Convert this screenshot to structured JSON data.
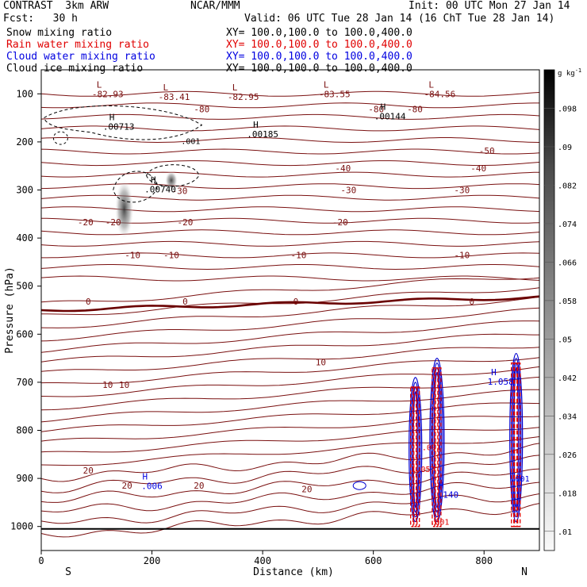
{
  "header": {
    "model": "CONTRAST  3km ARW",
    "org": "NCAR/MMM",
    "init": "Init: 00 UTC Mon 27 Jan 14",
    "fcst": "Fcst:   30 h",
    "valid": "Valid: 06 UTC Tue 28 Jan 14 (16 ChT Tue 28 Jan 14)",
    "fields": [
      {
        "name": "Snow mixing ratio",
        "xy": "XY= 100.0,100.0 to 100.0,400.0",
        "color": "#000000"
      },
      {
        "name": "Rain water mixing ratio",
        "xy": "XY= 100.0,100.0 to 100.0,400.0",
        "color": "#e00000"
      },
      {
        "name": "Cloud water mixing ratio",
        "xy": "XY= 100.0,100.0 to 100.0,400.0",
        "color": "#0000e0"
      },
      {
        "name": "Cloud ice mixing ratio",
        "xy": "XY= 100.0,100.0 to 100.0,400.0",
        "color": "#000000"
      }
    ]
  },
  "chart_data": {
    "type": "cross-section contour plot",
    "xlabel": "Distance (km)",
    "ylabel": "Pressure (hPa)",
    "xlim": [
      0,
      900
    ],
    "ylim": [
      1050,
      50
    ],
    "x_ticks": [
      "0",
      "200",
      "400",
      "600",
      "800"
    ],
    "y_ticks": [
      "100",
      "200",
      "300",
      "400",
      "500",
      "600",
      "700",
      "800",
      "900",
      "1000"
    ],
    "endpoints": {
      "left": "S",
      "right": "N"
    },
    "colorbar": {
      "unit": "g kg",
      "unit_exp": "-1",
      "labels": [
        ".098",
        ".09",
        ".082",
        ".074",
        ".066",
        ".058",
        ".05",
        ".042",
        ".034",
        ".026",
        ".018",
        ".01"
      ]
    },
    "temperature_contour_labels": [
      {
        "x": 80,
        "p": 367,
        "t": "-20"
      },
      {
        "x": 130,
        "p": 367,
        "t": "-20"
      },
      {
        "x": 260,
        "p": 367,
        "t": "-20"
      },
      {
        "x": 540,
        "p": 367,
        "t": "-20"
      },
      {
        "x": 165,
        "p": 435,
        "t": "-10"
      },
      {
        "x": 235,
        "p": 435,
        "t": "-10"
      },
      {
        "x": 465,
        "p": 435,
        "t": "-10"
      },
      {
        "x": 760,
        "p": 435,
        "t": "-10"
      },
      {
        "x": 85,
        "p": 532,
        "t": "0"
      },
      {
        "x": 260,
        "p": 532,
        "t": "0"
      },
      {
        "x": 460,
        "p": 532,
        "t": "0"
      },
      {
        "x": 778,
        "p": 532,
        "t": "0"
      },
      {
        "x": 505,
        "p": 658,
        "t": "10"
      },
      {
        "x": 120,
        "p": 705,
        "t": "10"
      },
      {
        "x": 150,
        "p": 705,
        "t": "10"
      },
      {
        "x": 85,
        "p": 883,
        "t": "20"
      },
      {
        "x": 155,
        "p": 915,
        "t": "20"
      },
      {
        "x": 285,
        "p": 915,
        "t": "20"
      },
      {
        "x": 480,
        "p": 922,
        "t": "20"
      },
      {
        "x": 555,
        "p": 300,
        "t": "-30"
      },
      {
        "x": 760,
        "p": 300,
        "t": "-30"
      },
      {
        "x": 250,
        "p": 302,
        "t": "-30"
      },
      {
        "x": 545,
        "p": 255,
        "t": "-40"
      },
      {
        "x": 790,
        "p": 255,
        "t": "-40"
      },
      {
        "x": 805,
        "p": 218,
        "t": "-50"
      },
      {
        "x": 290,
        "p": 132,
        "t": "-80"
      },
      {
        "x": 605,
        "p": 132,
        "t": "-80"
      },
      {
        "x": 675,
        "p": 132,
        "t": "-80"
      }
    ],
    "low_markers": [
      {
        "x": 120,
        "p": 97,
        "t": "-82.93"
      },
      {
        "x": 240,
        "p": 103,
        "t": "-83.41"
      },
      {
        "x": 365,
        "p": 103,
        "t": "-82.95"
      },
      {
        "x": 530,
        "p": 97,
        "t": "-83.55"
      },
      {
        "x": 720,
        "p": 97,
        "t": "-84.56"
      }
    ],
    "high_markers": [
      {
        "x": 140,
        "p": 170,
        "t": ".00713",
        "color": "#000000"
      },
      {
        "x": 400,
        "p": 185,
        "t": ".00185",
        "color": "#000000"
      },
      {
        "x": 630,
        "p": 148,
        "t": ".00144",
        "color": "#000000"
      },
      {
        "x": 215,
        "p": 300,
        "t": ".00740",
        "color": "#000000"
      },
      {
        "x": 200,
        "p": 917,
        "t": ".006",
        "color": "#0000e0"
      },
      {
        "x": 735,
        "p": 935,
        "t": ".140",
        "color": "#0000e0"
      },
      {
        "x": 830,
        "p": 700,
        "t": "1.058",
        "color": "#0000e0"
      }
    ],
    "other_labels": [
      {
        "x": 270,
        "p": 198,
        "t": ".001",
        "color": "#000000"
      },
      {
        "x": 705,
        "p": 835,
        "t": ".001",
        "color": "#e00000"
      },
      {
        "x": 720,
        "p": 990,
        "t": ".001",
        "color": "#e00000"
      },
      {
        "x": 865,
        "p": 900,
        "t": ".001",
        "color": "#0000e0"
      },
      {
        "x": 690,
        "p": 880,
        "t": "1.057",
        "color": "#e00000"
      }
    ]
  }
}
